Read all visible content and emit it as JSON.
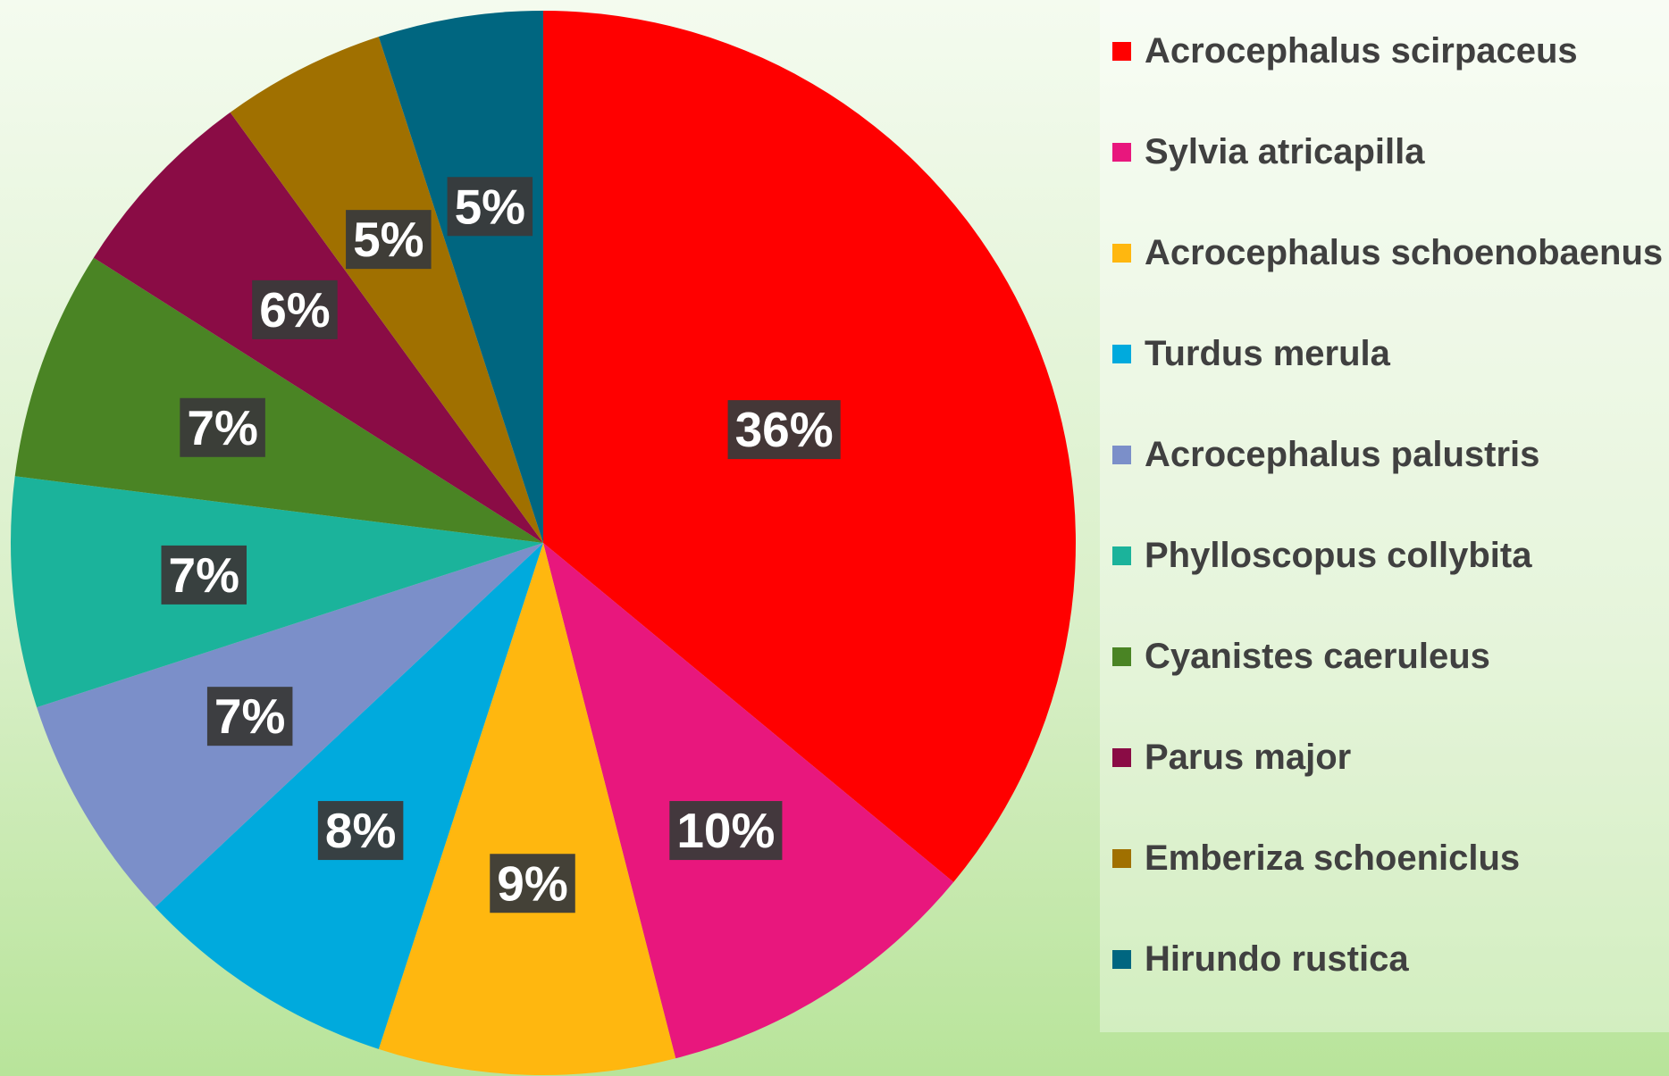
{
  "chart_data": {
    "type": "pie",
    "categories": [
      "Acrocephalus scirpaceus",
      "Sylvia atricapilla",
      "Acrocephalus schoenobaenus",
      "Turdus merula",
      "Acrocephalus palustris",
      "Phylloscopus collybita",
      "Cyanistes caeruleus",
      "Parus major",
      "Emberiza schoeniclus",
      "Hirundo rustica"
    ],
    "values": [
      36,
      10,
      9,
      8,
      7,
      7,
      7,
      6,
      5,
      5
    ],
    "value_labels": [
      "36%",
      "10%",
      "9%",
      "8%",
      "7%",
      "7%",
      "7%",
      "6%",
      "5%",
      "5%"
    ],
    "colors": [
      "#ff0000",
      "#e8177d",
      "#ffb70f",
      "#00aadd",
      "#7b8fc9",
      "#1bb39b",
      "#4a8424",
      "#8a0c45",
      "#a07000",
      "#006680"
    ],
    "legend": "right"
  }
}
